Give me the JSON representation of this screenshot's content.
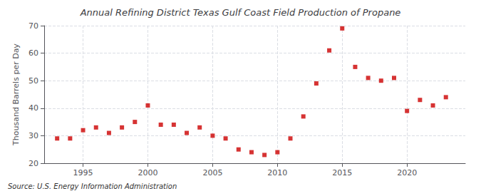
{
  "chart_data": {
    "type": "scatter",
    "title": "Annual Refining District Texas Gulf Coast Field Production of Propane",
    "ylabel": "Thousand Barrels per Day",
    "annotation": "Source: U.S. Energy Information Administration",
    "x": [
      1993,
      1994,
      1995,
      1996,
      1997,
      1998,
      1999,
      2000,
      2001,
      2002,
      2003,
      2004,
      2005,
      2006,
      2007,
      2008,
      2009,
      2010,
      2011,
      2012,
      2013,
      2014,
      2015,
      2016,
      2017,
      2018,
      2019,
      2020,
      2021,
      2022,
      2023
    ],
    "values": [
      29,
      29,
      32,
      33,
      31,
      33,
      35,
      41,
      34,
      34,
      31,
      33,
      30,
      29,
      25,
      24,
      23,
      24,
      29,
      37,
      49,
      61,
      69,
      55,
      51,
      50,
      51,
      39,
      43,
      41,
      44
    ],
    "color": "#cc0000",
    "marker": "square",
    "xlim": [
      1992.0,
      2024.5
    ],
    "xticks": [
      1995,
      2000,
      2005,
      2010,
      2015,
      2020
    ],
    "ylim": [
      20,
      70
    ],
    "yticks": [
      20,
      30,
      40,
      50,
      60,
      70
    ],
    "grid": true
  }
}
